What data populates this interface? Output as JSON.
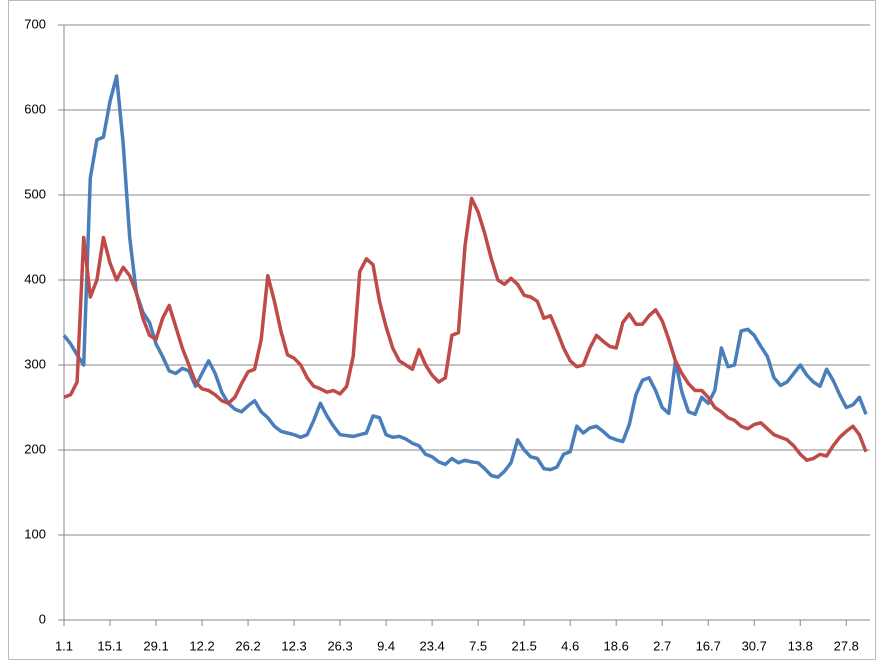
{
  "chart_data": {
    "type": "line",
    "categories": [
      "1.1",
      null,
      null,
      null,
      null,
      null,
      null,
      "15.1",
      null,
      null,
      null,
      null,
      null,
      null,
      "29.1",
      null,
      null,
      null,
      null,
      null,
      null,
      "12.2",
      null,
      null,
      null,
      null,
      null,
      null,
      "26.2",
      null,
      null,
      null,
      null,
      null,
      null,
      "12.3",
      null,
      null,
      null,
      null,
      null,
      null,
      "26.3",
      null,
      null,
      null,
      null,
      null,
      null,
      "9.4",
      null,
      null,
      null,
      null,
      null,
      null,
      "23.4",
      null,
      null,
      null,
      null,
      null,
      null,
      "7.5",
      null,
      null,
      null,
      null,
      null,
      null,
      "21.5",
      null,
      null,
      null,
      null,
      null,
      null,
      "4.6",
      null,
      null,
      null,
      null,
      null,
      null,
      "18.6",
      null,
      null,
      null,
      null,
      null,
      null,
      "2.7",
      null,
      null,
      null,
      null,
      null,
      null,
      "16.7",
      null,
      null,
      null,
      null,
      null,
      null,
      "30.7",
      null,
      null,
      null,
      null,
      null,
      null,
      "13.8",
      null,
      null,
      null,
      null,
      null,
      null,
      "27.8",
      null,
      null,
      null
    ],
    "series": [
      {
        "color": "#4a7ebb",
        "values": [
          335,
          325,
          312,
          300,
          520,
          565,
          568,
          610,
          640,
          560,
          450,
          385,
          362,
          350,
          325,
          310,
          293,
          290,
          296,
          293,
          275,
          290,
          305,
          290,
          268,
          255,
          248,
          245,
          252,
          258,
          245,
          238,
          228,
          222,
          220,
          218,
          215,
          218,
          235,
          255,
          240,
          228,
          218,
          217,
          216,
          218,
          220,
          240,
          238,
          218,
          215,
          216,
          213,
          208,
          205,
          195,
          192,
          186,
          183,
          190,
          185,
          188,
          186,
          185,
          178,
          170,
          168,
          175,
          185,
          212,
          200,
          192,
          190,
          178,
          177,
          180,
          195,
          198,
          228,
          220,
          226,
          228,
          222,
          215,
          212,
          210,
          230,
          265,
          282,
          285,
          270,
          250,
          243,
          305,
          268,
          245,
          242,
          262,
          255,
          270,
          320,
          298,
          300,
          340,
          342,
          335,
          322,
          310,
          285,
          276,
          280,
          290,
          300,
          288,
          280,
          275,
          295,
          282,
          265,
          250,
          253,
          262,
          242
        ]
      },
      {
        "color": "#be4b48",
        "values": [
          262,
          265,
          280,
          450,
          380,
          400,
          450,
          420,
          400,
          415,
          405,
          385,
          355,
          335,
          330,
          355,
          370,
          345,
          320,
          300,
          280,
          272,
          270,
          265,
          258,
          255,
          262,
          278,
          292,
          295,
          330,
          405,
          375,
          340,
          312,
          308,
          300,
          285,
          275,
          272,
          268,
          270,
          266,
          275,
          310,
          410,
          425,
          418,
          375,
          345,
          320,
          305,
          300,
          295,
          318,
          300,
          288,
          280,
          285,
          335,
          338,
          440,
          496,
          480,
          455,
          425,
          400,
          395,
          402,
          395,
          382,
          380,
          375,
          355,
          358,
          340,
          320,
          305,
          298,
          300,
          320,
          335,
          328,
          322,
          320,
          350,
          360,
          348,
          348,
          358,
          365,
          352,
          330,
          305,
          290,
          278,
          270,
          270,
          262,
          250,
          245,
          238,
          235,
          228,
          225,
          230,
          232,
          225,
          218,
          215,
          212,
          205,
          195,
          188,
          190,
          195,
          193,
          205,
          215,
          222,
          228,
          218,
          198
        ]
      }
    ],
    "ylim": [
      0,
      700
    ],
    "yticks": [
      0,
      100,
      200,
      300,
      400,
      500,
      600,
      700
    ],
    "grid": true
  }
}
